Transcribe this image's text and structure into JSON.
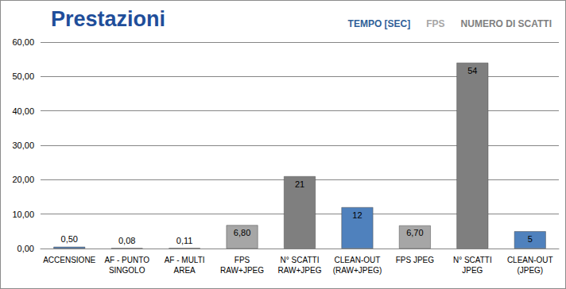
{
  "chart_data": {
    "type": "bar",
    "title": "Prestazioni",
    "categories": [
      "ACCENSIONE",
      "AF - PUNTO\nSINGOLO",
      "AF - MULTI\nAREA",
      "FPS\nRAW+JPEG",
      "N° SCATTI\nRAW+JPEG",
      "CLEAN-OUT\n(RAW+JPEG)",
      "FPS JPEG",
      "N° SCATTI\nJPEG",
      "CLEAN-OUT\n(JPEG)"
    ],
    "series": [
      {
        "name": "TEMPO [SEC]",
        "color": "#4f81bd",
        "values": [
          0.5,
          0.08,
          0.11,
          null,
          null,
          12,
          null,
          null,
          5
        ],
        "value_labels": [
          "0,50",
          "0,08",
          "0,11",
          null,
          null,
          "12",
          null,
          null,
          "5"
        ]
      },
      {
        "name": "FPS",
        "color": "#a6a6a6",
        "values": [
          null,
          null,
          null,
          6.8,
          null,
          null,
          6.7,
          null,
          null
        ],
        "value_labels": [
          null,
          null,
          null,
          "6,80",
          null,
          null,
          "6,70",
          null,
          null
        ]
      },
      {
        "name": "NUMERO DI SCATTI",
        "color": "#7f7f7f",
        "values": [
          null,
          null,
          null,
          null,
          21,
          null,
          null,
          54,
          null
        ],
        "value_labels": [
          null,
          null,
          null,
          null,
          "21",
          null,
          null,
          "54",
          null
        ]
      }
    ],
    "ylim": [
      0,
      60
    ],
    "yticks": [
      {
        "value": 0,
        "label": "0,00"
      },
      {
        "value": 10,
        "label": "10,00"
      },
      {
        "value": 20,
        "label": "20,00"
      },
      {
        "value": 30,
        "label": "30,00"
      },
      {
        "value": 40,
        "label": "40,00"
      },
      {
        "value": 50,
        "label": "50,00"
      },
      {
        "value": 60,
        "label": "60,00"
      }
    ],
    "grid": true,
    "legend": "top-right",
    "data_labels": true
  }
}
